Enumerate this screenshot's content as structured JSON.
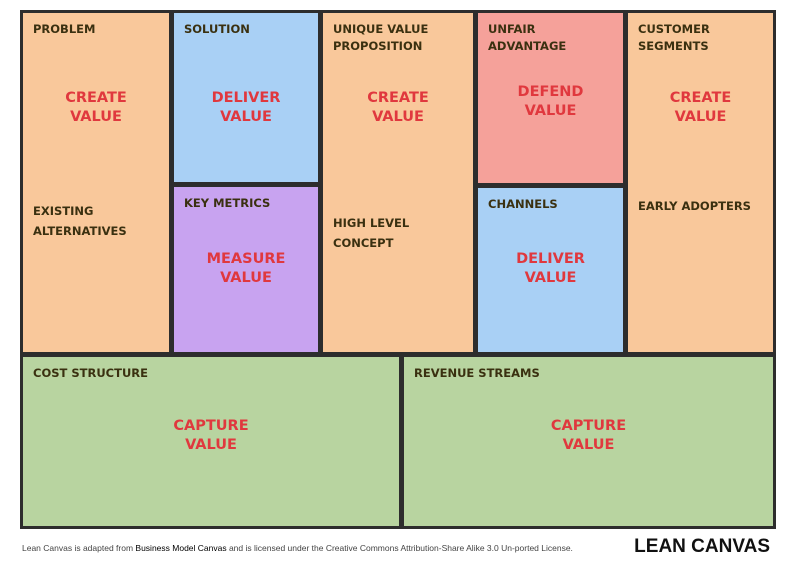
{
  "cells": {
    "problem": {
      "title": "PROBLEM",
      "value": "CREATE\nVALUE",
      "sub": "EXISTING\nALTERNATIVES"
    },
    "solution": {
      "title": "SOLUTION",
      "value": "DELIVER\nVALUE"
    },
    "key_metrics": {
      "title": "KEY  METRICS",
      "value": "MEASURE\nVALUE"
    },
    "uvp": {
      "title": "UNIQUE VALUE\nPROPOSITION",
      "value": "CREATE\nVALUE",
      "sub": "HIGH LEVEL CONCEPT"
    },
    "unfair": {
      "title": "UNFAIR\nADVANTAGE",
      "value": "DEFEND\nVALUE"
    },
    "channels": {
      "title": "CHANNELS",
      "value": "DELIVER\nVALUE"
    },
    "customers": {
      "title": "CUSTOMER\nSEGMENTS",
      "value": "CREATE\nVALUE",
      "sub": "EARLY ADOPTERS"
    },
    "cost": {
      "title": "COST STRUCTURE",
      "value": "CAPTURE\nVALUE"
    },
    "revenue": {
      "title": "REVENUE STREAMS",
      "value": "CAPTURE\nVALUE"
    }
  },
  "footer": {
    "prefix": "Lean Canvas is adapted from ",
    "link": "Business Model Canvas",
    "suffix": " and is licensed under the Creative Commons Attribution-Share Alike 3.0 Un-ported License.",
    "brand": "LEAN CANVAS"
  },
  "colors": {
    "orange": "#f9c89b",
    "blue": "#a9d0f5",
    "purple": "#c8a3f0",
    "red": "#f5a19a",
    "green": "#b8d4a0",
    "value_text": "#e0383e"
  }
}
